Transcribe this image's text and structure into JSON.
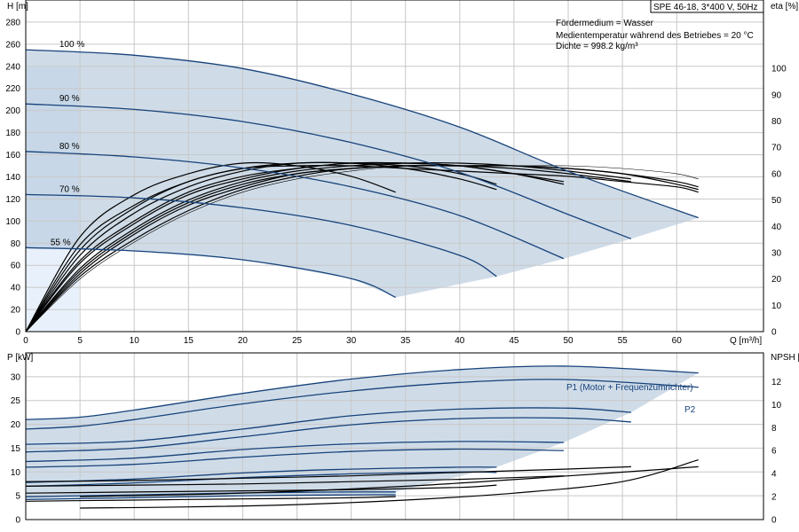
{
  "colors": {
    "curve_blue": "#17427a",
    "operating_region": "#b6c9dc",
    "grid": "#c8c8c8"
  },
  "chart_data": [
    {
      "type": "line",
      "title": "SPE 46-18, 3*400 V, 50Hz",
      "notes": [
        "Fördermedium = Wasser",
        "Medientemperatur während des Betriebes = 20 °C",
        "Dichte = 998.2 kg/m³"
      ],
      "xlabel": "Q [m³/h]",
      "ylabel_left": "H [m]",
      "ylabel_right": "eta [%]",
      "xlim": [
        0,
        68
      ],
      "ylim_left": [
        0,
        300
      ],
      "ylim_right": [
        0,
        126
      ],
      "x_ticks": [
        0,
        5,
        10,
        15,
        20,
        25,
        30,
        35,
        40,
        45,
        50,
        55,
        60
      ],
      "y_ticks_left": [
        0,
        20,
        40,
        60,
        80,
        100,
        120,
        140,
        160,
        180,
        200,
        220,
        240,
        260,
        280
      ],
      "y_ticks_right": [
        0,
        10,
        20,
        30,
        40,
        50,
        60,
        70,
        80,
        90,
        100
      ],
      "grid": true,
      "speed_curves": [
        {
          "label": "100 %",
          "x": [
            0,
            10,
            20,
            30,
            40,
            50,
            62
          ],
          "y": [
            255,
            250,
            238,
            215,
            185,
            145,
            103
          ]
        },
        {
          "label": "90 %",
          "x": [
            0,
            10,
            20,
            30,
            40,
            50,
            55.8
          ],
          "y": [
            206,
            201,
            190,
            171,
            144,
            106,
            84
          ]
        },
        {
          "label": "80 %",
          "x": [
            0,
            10,
            20,
            30,
            40,
            49.6
          ],
          "y": [
            163,
            158,
            148,
            131,
            105,
            66
          ]
        },
        {
          "label": "70 %",
          "x": [
            0,
            10,
            20,
            30,
            40,
            43.4
          ],
          "y": [
            124,
            121,
            112,
            96,
            69,
            50
          ]
        },
        {
          "label": "55 %",
          "x": [
            0,
            10,
            20,
            30,
            34.1
          ],
          "y": [
            76,
            73,
            65,
            48,
            31
          ]
        }
      ],
      "efficiency_curves": [
        {
          "x": [
            0,
            5,
            10,
            15,
            20,
            25,
            30,
            35,
            40,
            45,
            50,
            55,
            60,
            62
          ],
          "y": [
            0,
            20,
            34,
            45,
            53,
            58,
            61,
            63,
            63,
            63,
            63,
            62,
            60,
            58
          ]
        },
        {
          "x": [
            0,
            5,
            10,
            15,
            20,
            25,
            30,
            35,
            40,
            45,
            50,
            55,
            60,
            62
          ],
          "y": [
            0,
            21,
            35,
            46,
            54,
            59,
            62,
            63,
            63,
            63,
            62,
            60,
            57,
            55
          ]
        },
        {
          "x": [
            0,
            5,
            10,
            15,
            20,
            25,
            30,
            35,
            40,
            45,
            50,
            55,
            60,
            62
          ],
          "y": [
            0,
            22,
            37,
            48,
            55,
            60,
            62,
            63,
            63,
            63,
            62,
            60,
            56,
            54
          ]
        },
        {
          "x": [
            0,
            5,
            10,
            15,
            20,
            25,
            30,
            35,
            40,
            45,
            50,
            55.8
          ],
          "y": [
            0,
            23,
            38,
            49,
            56,
            60,
            62,
            63,
            63,
            62,
            60,
            57
          ]
        },
        {
          "x": [
            0,
            5,
            10,
            15,
            20,
            25,
            30,
            35,
            40,
            45,
            50,
            55.8
          ],
          "y": [
            0,
            24,
            39,
            50,
            57,
            61,
            63,
            64,
            64,
            63,
            61,
            58
          ]
        },
        {
          "x": [
            0,
            5,
            10,
            15,
            20,
            25,
            30,
            35,
            40,
            45,
            49.6
          ],
          "y": [
            0,
            26,
            41,
            52,
            58,
            62,
            64,
            64,
            63,
            60,
            56
          ]
        },
        {
          "x": [
            0,
            5,
            10,
            15,
            20,
            25,
            30,
            35,
            40,
            45,
            49.6
          ],
          "y": [
            0,
            27,
            42,
            53,
            59,
            62,
            64,
            64,
            63,
            60,
            57
          ]
        },
        {
          "x": [
            0,
            5,
            10,
            15,
            20,
            25,
            30,
            35,
            40,
            43.4
          ],
          "y": [
            0,
            29,
            45,
            55,
            61,
            64,
            64,
            63,
            60,
            56
          ]
        },
        {
          "x": [
            0,
            5,
            10,
            15,
            20,
            25,
            30,
            35,
            40,
            43.4
          ],
          "y": [
            0,
            31,
            47,
            57,
            62,
            64,
            64,
            62,
            58,
            54
          ]
        },
        {
          "x": [
            0,
            5,
            10,
            15,
            20,
            25,
            30,
            34.1
          ],
          "y": [
            0,
            36,
            52,
            60,
            64,
            63,
            59,
            53
          ]
        },
        {
          "x": [
            0,
            5,
            10,
            15,
            20,
            25,
            30,
            35,
            40,
            45,
            50,
            55,
            60,
            62
          ],
          "y": [
            0,
            33,
            48,
            57,
            62,
            63,
            63,
            62,
            61,
            60,
            59,
            57,
            55,
            53
          ]
        }
      ]
    },
    {
      "type": "line",
      "xlabel": "",
      "ylabel_left": "P [kW]",
      "ylabel_right": "NPSH [m]",
      "xlim": [
        0,
        68
      ],
      "ylim_left": [
        0,
        35
      ],
      "ylim_right": [
        0,
        14.5
      ],
      "y_ticks_left": [
        0,
        5,
        10,
        15,
        20,
        25,
        30
      ],
      "y_ticks_right": [
        0,
        2,
        4,
        6,
        8,
        10,
        12
      ],
      "grid": true,
      "annotations": [
        "P1 (Motor + Frequenzumrichter)",
        "P2"
      ],
      "power_curves": [
        {
          "label": "P1 (Motor + Frequenzumrichter)",
          "x": [
            0,
            5,
            10,
            20,
            30,
            40,
            50,
            62
          ],
          "y": [
            21,
            21.5,
            23,
            26.5,
            29.5,
            31.5,
            32.2,
            30.8
          ]
        },
        {
          "label": "P2",
          "x": [
            0,
            5,
            10,
            20,
            30,
            40,
            50,
            62
          ],
          "y": [
            19,
            19.6,
            21,
            24.3,
            27,
            28.8,
            29.4,
            27.8
          ]
        },
        {
          "x": [
            0,
            10,
            20,
            30,
            40,
            50,
            55.8
          ],
          "y": [
            15.8,
            16.5,
            19,
            21.8,
            23.2,
            23.4,
            22.5
          ]
        },
        {
          "x": [
            0,
            10,
            20,
            30,
            40,
            50,
            55.8
          ],
          "y": [
            14.2,
            15,
            17.4,
            19.9,
            21.2,
            21.3,
            20.5
          ]
        },
        {
          "x": [
            0,
            10,
            20,
            30,
            40,
            49.6
          ],
          "y": [
            12.2,
            12.9,
            14.7,
            15.9,
            16.4,
            16.2
          ]
        },
        {
          "x": [
            0,
            10,
            20,
            30,
            40,
            49.6
          ],
          "y": [
            11,
            11.6,
            13.1,
            14.3,
            14.8,
            14.5
          ]
        },
        {
          "x": [
            0,
            10,
            20,
            30,
            40,
            43.4
          ],
          "y": [
            7.8,
            8.5,
            9.8,
            10.6,
            11,
            11
          ]
        },
        {
          "x": [
            0,
            10,
            20,
            30,
            40,
            43.4
          ],
          "y": [
            7,
            7.7,
            8.8,
            9.6,
            10,
            9.9
          ]
        },
        {
          "x": [
            0,
            10,
            20,
            30,
            34.1
          ],
          "y": [
            4.8,
            5.2,
            5.6,
            5.8,
            5.8
          ]
        },
        {
          "x": [
            0,
            10,
            20,
            30,
            34.1
          ],
          "y": [
            4.2,
            4.6,
            5,
            5.2,
            5.2
          ]
        }
      ],
      "npsh_curves": [
        {
          "x": [
            5,
            15,
            25,
            35,
            45,
            55,
            62
          ],
          "y": [
            1,
            1.1,
            1.3,
            1.7,
            2.3,
            3.3,
            5.2
          ]
        },
        {
          "x": [
            0,
            10,
            20,
            30,
            40,
            50,
            55.8
          ],
          "y": [
            3.3,
            3.4,
            3.6,
            3.8,
            4.1,
            4.4,
            4.6
          ]
        },
        {
          "x": [
            0,
            10,
            20,
            30,
            40,
            49.6
          ],
          "y": [
            2.9,
            3,
            3.1,
            3.3,
            3.5,
            3.8
          ]
        },
        {
          "x": [
            0,
            10,
            20,
            30,
            40,
            43.4
          ],
          "y": [
            2.3,
            2.4,
            2.5,
            2.6,
            2.8,
            3
          ]
        },
        {
          "x": [
            0,
            10,
            20,
            30,
            34.1
          ],
          "y": [
            1.6,
            1.7,
            1.8,
            1.9,
            2
          ]
        },
        {
          "x": [
            5,
            20,
            35,
            50,
            62
          ],
          "y": [
            2,
            2.3,
            2.9,
            3.8,
            4.6
          ]
        }
      ]
    }
  ]
}
